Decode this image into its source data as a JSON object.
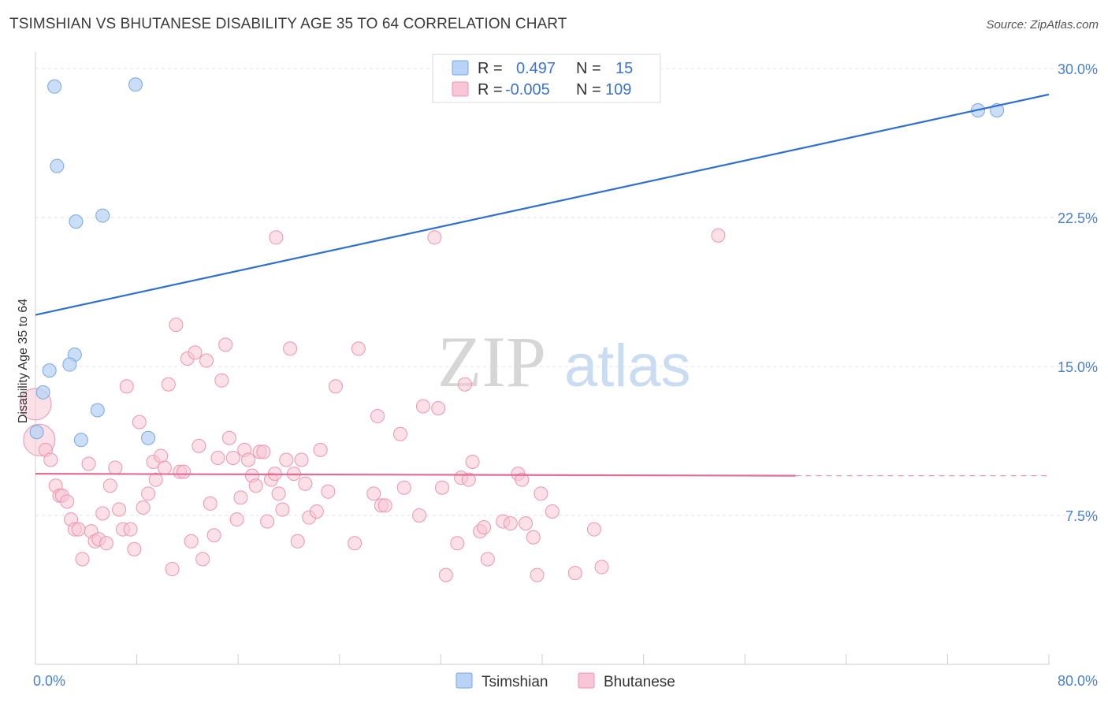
{
  "header": {
    "title": "TSIMSHIAN VS BHUTANESE DISABILITY AGE 35 TO 64 CORRELATION CHART",
    "source": "Source: ZipAtlas.com"
  },
  "watermark": {
    "zip": "ZIP",
    "atlas": "atlas"
  },
  "colors": {
    "tsimshian_fill": "#b8d3f5",
    "tsimshian_stroke": "#7aa7e0",
    "tsimshian_line": "#2f6fd0",
    "bhutanese_fill": "#f8c6d6",
    "bhutanese_stroke": "#ec95b2",
    "bhutanese_line": "#e46b94",
    "tick_text": "#4a7fd0",
    "grid": "#e3e3e3"
  },
  "legend_top": {
    "rows": [
      {
        "r_label": "R =",
        "r_value": "0.497",
        "n_label": "N =",
        "n_value": "15"
      },
      {
        "r_label": "R =",
        "r_value": "-0.005",
        "n_label": "N =",
        "n_value": "109"
      }
    ]
  },
  "legend_bottom": {
    "series1": "Tsimshian",
    "series2": "Bhutanese"
  },
  "chart_data": {
    "type": "scatter",
    "title": "TSIMSHIAN VS BHUTANESE DISABILITY AGE 35 TO 64 CORRELATION CHART",
    "xlabel": "",
    "ylabel": "Disability Age 35 to 64",
    "xlim": [
      0,
      80
    ],
    "ylim": [
      0,
      30.6
    ],
    "x_tick_labels": [
      "0.0%",
      "80.0%"
    ],
    "y_ticks": [
      7.5,
      15.0,
      22.5,
      30.0
    ],
    "y_tick_labels": [
      "7.5%",
      "15.0%",
      "22.5%",
      "30.0%"
    ],
    "grid": true,
    "series": [
      {
        "name": "Tsimshian",
        "trend": {
          "x1": 0,
          "y1": 17.6,
          "x2": 80,
          "y2": 28.7,
          "dashed_from": null
        },
        "points": [
          {
            "x": 1.5,
            "y": 29.1
          },
          {
            "x": 7.9,
            "y": 29.2
          },
          {
            "x": 1.7,
            "y": 25.1
          },
          {
            "x": 3.2,
            "y": 22.3
          },
          {
            "x": 5.3,
            "y": 22.6
          },
          {
            "x": 3.1,
            "y": 15.6
          },
          {
            "x": 2.7,
            "y": 15.1
          },
          {
            "x": 1.1,
            "y": 14.8
          },
          {
            "x": 0.6,
            "y": 13.7
          },
          {
            "x": 4.9,
            "y": 12.8
          },
          {
            "x": 0.1,
            "y": 11.7
          },
          {
            "x": 3.6,
            "y": 11.3
          },
          {
            "x": 8.9,
            "y": 11.4
          },
          {
            "x": 74.4,
            "y": 27.9
          },
          {
            "x": 75.9,
            "y": 27.9
          }
        ]
      },
      {
        "name": "Bhutanese",
        "trend": {
          "x1": 0,
          "y1": 9.6,
          "x2": 60,
          "y2": 9.5,
          "dashed_to_x": 80,
          "dashed_to_y": 9.5
        },
        "points": [
          {
            "x": 0.0,
            "y": 13.1,
            "big": true
          },
          {
            "x": 0.3,
            "y": 11.3,
            "big": true
          },
          {
            "x": 0.8,
            "y": 10.8
          },
          {
            "x": 1.2,
            "y": 10.3
          },
          {
            "x": 1.6,
            "y": 9.0
          },
          {
            "x": 1.9,
            "y": 8.5
          },
          {
            "x": 2.1,
            "y": 8.5
          },
          {
            "x": 2.5,
            "y": 8.2
          },
          {
            "x": 2.8,
            "y": 7.3
          },
          {
            "x": 3.1,
            "y": 6.8
          },
          {
            "x": 3.4,
            "y": 6.8
          },
          {
            "x": 3.7,
            "y": 5.3
          },
          {
            "x": 4.2,
            "y": 10.1
          },
          {
            "x": 4.4,
            "y": 6.7
          },
          {
            "x": 4.7,
            "y": 6.2
          },
          {
            "x": 5.0,
            "y": 6.3
          },
          {
            "x": 5.3,
            "y": 7.6
          },
          {
            "x": 5.6,
            "y": 6.1
          },
          {
            "x": 5.9,
            "y": 9.0
          },
          {
            "x": 6.3,
            "y": 9.9
          },
          {
            "x": 6.6,
            "y": 7.8
          },
          {
            "x": 6.9,
            "y": 6.8
          },
          {
            "x": 7.2,
            "y": 14.0
          },
          {
            "x": 7.5,
            "y": 6.8
          },
          {
            "x": 7.8,
            "y": 5.8
          },
          {
            "x": 8.2,
            "y": 12.2
          },
          {
            "x": 8.5,
            "y": 7.9
          },
          {
            "x": 8.9,
            "y": 8.6
          },
          {
            "x": 9.3,
            "y": 10.2
          },
          {
            "x": 9.5,
            "y": 9.3
          },
          {
            "x": 9.9,
            "y": 10.5
          },
          {
            "x": 10.2,
            "y": 9.9
          },
          {
            "x": 10.5,
            "y": 14.1
          },
          {
            "x": 10.8,
            "y": 4.8
          },
          {
            "x": 11.1,
            "y": 17.1
          },
          {
            "x": 11.4,
            "y": 9.7
          },
          {
            "x": 11.7,
            "y": 9.7
          },
          {
            "x": 12.0,
            "y": 15.4
          },
          {
            "x": 12.3,
            "y": 6.2
          },
          {
            "x": 12.6,
            "y": 15.7
          },
          {
            "x": 12.9,
            "y": 11.0
          },
          {
            "x": 13.2,
            "y": 5.3
          },
          {
            "x": 13.5,
            "y": 15.3
          },
          {
            "x": 13.8,
            "y": 8.1
          },
          {
            "x": 14.1,
            "y": 6.5
          },
          {
            "x": 14.4,
            "y": 10.4
          },
          {
            "x": 14.7,
            "y": 14.3
          },
          {
            "x": 15.0,
            "y": 16.1
          },
          {
            "x": 15.3,
            "y": 11.4
          },
          {
            "x": 15.6,
            "y": 10.4
          },
          {
            "x": 15.9,
            "y": 7.3
          },
          {
            "x": 16.2,
            "y": 8.4
          },
          {
            "x": 16.5,
            "y": 10.8
          },
          {
            "x": 16.8,
            "y": 10.3
          },
          {
            "x": 17.1,
            "y": 9.5
          },
          {
            "x": 17.4,
            "y": 9.0
          },
          {
            "x": 17.7,
            "y": 10.7
          },
          {
            "x": 18.0,
            "y": 10.7
          },
          {
            "x": 18.3,
            "y": 7.2
          },
          {
            "x": 18.6,
            "y": 9.3
          },
          {
            "x": 18.9,
            "y": 9.6
          },
          {
            "x": 19.2,
            "y": 8.6
          },
          {
            "x": 19.5,
            "y": 7.8
          },
          {
            "x": 19.8,
            "y": 10.3
          },
          {
            "x": 20.1,
            "y": 15.9
          },
          {
            "x": 20.4,
            "y": 9.6
          },
          {
            "x": 20.7,
            "y": 6.2
          },
          {
            "x": 21.0,
            "y": 10.3
          },
          {
            "x": 21.3,
            "y": 9.1
          },
          {
            "x": 21.6,
            "y": 7.4
          },
          {
            "x": 22.2,
            "y": 7.7
          },
          {
            "x": 22.5,
            "y": 10.8
          },
          {
            "x": 23.1,
            "y": 8.7
          },
          {
            "x": 23.7,
            "y": 14.0
          },
          {
            "x": 25.2,
            "y": 6.1
          },
          {
            "x": 25.5,
            "y": 15.9
          },
          {
            "x": 26.7,
            "y": 8.6
          },
          {
            "x": 27.0,
            "y": 12.5
          },
          {
            "x": 27.3,
            "y": 8.0
          },
          {
            "x": 27.6,
            "y": 8.0
          },
          {
            "x": 28.8,
            "y": 11.6
          },
          {
            "x": 29.1,
            "y": 8.9
          },
          {
            "x": 30.3,
            "y": 7.5
          },
          {
            "x": 30.6,
            "y": 13.0
          },
          {
            "x": 31.8,
            "y": 12.9
          },
          {
            "x": 32.1,
            "y": 8.9
          },
          {
            "x": 32.4,
            "y": 4.5
          },
          {
            "x": 33.3,
            "y": 6.1
          },
          {
            "x": 33.6,
            "y": 9.4
          },
          {
            "x": 34.2,
            "y": 9.3
          },
          {
            "x": 34.5,
            "y": 10.2
          },
          {
            "x": 35.1,
            "y": 6.7
          },
          {
            "x": 35.4,
            "y": 6.9
          },
          {
            "x": 35.7,
            "y": 5.3
          },
          {
            "x": 36.9,
            "y": 7.2
          },
          {
            "x": 37.5,
            "y": 7.1
          },
          {
            "x": 38.1,
            "y": 9.6
          },
          {
            "x": 38.4,
            "y": 9.3
          },
          {
            "x": 38.7,
            "y": 7.1
          },
          {
            "x": 39.3,
            "y": 6.4
          },
          {
            "x": 39.6,
            "y": 4.5
          },
          {
            "x": 39.9,
            "y": 8.6
          },
          {
            "x": 40.8,
            "y": 7.7
          },
          {
            "x": 42.6,
            "y": 4.6
          },
          {
            "x": 44.1,
            "y": 6.8
          },
          {
            "x": 44.7,
            "y": 4.9
          },
          {
            "x": 19.0,
            "y": 21.5
          },
          {
            "x": 31.5,
            "y": 21.5
          },
          {
            "x": 53.9,
            "y": 21.6
          },
          {
            "x": 33.9,
            "y": 14.1
          }
        ]
      }
    ]
  }
}
